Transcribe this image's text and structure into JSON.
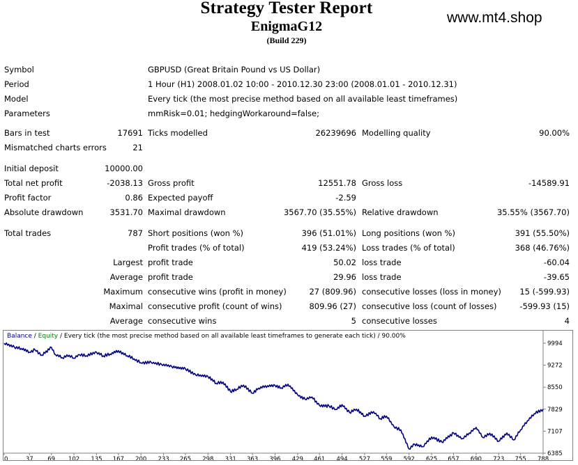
{
  "header": {
    "title": "Strategy Tester Report",
    "expert": "EnigmaG12",
    "build": "(Build 229)",
    "watermark": "www.mt4.shop"
  },
  "info": {
    "symbol_label": "Symbol",
    "symbol_value": "GBPUSD (Great Britain Pound vs US Dollar)",
    "period_label": "Period",
    "period_value": "1 Hour (H1) 2008.01.02 10:00 - 2010.12.30 23:00 (2008.01.01 - 2010.12.31)",
    "model_label": "Model",
    "model_value": "Every tick (the most precise method based on all available least timeframes)",
    "parameters_label": "Parameters",
    "parameters_value": "mmRisk=0.01; hedgingWorkaround=false;"
  },
  "stats": {
    "bars_label": "Bars in test",
    "bars_value": "17691",
    "ticks_label": "Ticks modelled",
    "ticks_value": "26239696",
    "quality_label": "Modelling quality",
    "quality_value": "90.00%",
    "mismatch_label": "Mismatched charts errors",
    "mismatch_value": "21",
    "deposit_label": "Initial deposit",
    "deposit_value": "10000.00",
    "net_label": "Total net profit",
    "net_value": "-2038.13",
    "gross_profit_label": "Gross profit",
    "gross_profit_value": "12551.78",
    "gross_loss_label": "Gross loss",
    "gross_loss_value": "-14589.91",
    "pf_label": "Profit factor",
    "pf_value": "0.86",
    "payoff_label": "Expected payoff",
    "payoff_value": "-2.59",
    "abs_dd_label": "Absolute drawdown",
    "abs_dd_value": "3531.70",
    "max_dd_label": "Maximal drawdown",
    "max_dd_value": "3567.70 (35.55%)",
    "rel_dd_label": "Relative drawdown",
    "rel_dd_value": "35.55% (3567.70)",
    "total_trades_label": "Total trades",
    "total_trades_value": "787",
    "short_label": "Short positions (won %)",
    "short_value": "396 (51.01%)",
    "long_label": "Long positions (won %)",
    "long_value": "391 (55.50%)",
    "profit_trades_label": "Profit trades (% of total)",
    "profit_trades_value": "419 (53.24%)",
    "loss_trades_label": "Loss trades (% of total)",
    "loss_trades_value": "368 (46.76%)",
    "largest_label": "Largest",
    "largest_profit_label": "profit trade",
    "largest_profit_value": "50.02",
    "largest_loss_label": "loss trade",
    "largest_loss_value": "-60.04",
    "average_label": "Average",
    "average_profit_label": "profit trade",
    "average_profit_value": "29.96",
    "average_loss_label": "loss trade",
    "average_loss_value": "-39.65",
    "maximum_label": "Maximum",
    "max_cons_wins_label": "consecutive wins (profit in money)",
    "max_cons_wins_value": "27 (809.96)",
    "max_cons_losses_label": "consecutive losses (loss in money)",
    "max_cons_losses_value": "15 (-599.93)",
    "maximal_label": "Maximal",
    "maximal_profit_label": "consecutive profit (count of wins)",
    "maximal_profit_value": "809.96 (27)",
    "maximal_loss_label": "consecutive loss (count of losses)",
    "maximal_loss_value": "-599.93 (15)",
    "average2_label": "Average",
    "avg_cons_wins_label": "consecutive wins",
    "avg_cons_wins_value": "5",
    "avg_cons_losses_label": "consecutive losses",
    "avg_cons_losses_value": "4"
  },
  "legend": {
    "balance": "Balance",
    "sep1": " / ",
    "equity": "Equity",
    "rest": " / Every tick (the most precise method based on all available least timeframes to generate each tick) / 90.00%",
    "balance_color": "#000080",
    "equity_color": "#008000"
  },
  "chart_data": {
    "type": "line",
    "x_ticks": [
      "0",
      "37",
      "69",
      "102",
      "135",
      "167",
      "200",
      "233",
      "265",
      "298",
      "331",
      "363",
      "396",
      "429",
      "461",
      "494",
      "527",
      "559",
      "592",
      "625",
      "657",
      "690",
      "723",
      "755",
      "788"
    ],
    "y_ticks": [
      "9994",
      "9272",
      "8550",
      "7829",
      "7107",
      "6385"
    ],
    "ylim": [
      6385,
      9994
    ],
    "xlim": [
      0,
      788
    ],
    "series": [
      {
        "name": "Balance",
        "color": "#000080",
        "x": [
          0,
          15,
          25,
          37,
          45,
          55,
          69,
          75,
          85,
          95,
          102,
          110,
          120,
          135,
          145,
          155,
          167,
          180,
          190,
          200,
          215,
          230,
          245,
          265,
          280,
          298,
          310,
          320,
          331,
          340,
          350,
          363,
          372,
          385,
          396,
          405,
          415,
          429,
          440,
          450,
          461,
          475,
          485,
          494,
          505,
          515,
          527,
          540,
          550,
          559,
          570,
          580,
          592,
          600,
          612,
          625,
          640,
          657,
          670,
          680,
          690,
          700,
          710,
          723,
          735,
          745,
          755,
          765,
          775,
          788
        ],
        "values": [
          9994,
          9860,
          9820,
          9700,
          9780,
          9600,
          9860,
          9620,
          9520,
          9600,
          9500,
          9620,
          9580,
          9700,
          9580,
          9640,
          9750,
          9580,
          9480,
          9350,
          9360,
          9300,
          9230,
          9150,
          8950,
          8900,
          8680,
          8720,
          8400,
          8480,
          8620,
          8350,
          8520,
          8600,
          8610,
          8530,
          8650,
          8300,
          8150,
          8230,
          7950,
          7930,
          7820,
          7980,
          7720,
          7830,
          7600,
          7750,
          7520,
          7600,
          7250,
          7150,
          6520,
          6680,
          6600,
          6920,
          6750,
          7050,
          6860,
          7050,
          7230,
          6900,
          7040,
          6780,
          7050,
          6820,
          7150,
          7450,
          7680,
          7829
        ]
      }
    ]
  }
}
